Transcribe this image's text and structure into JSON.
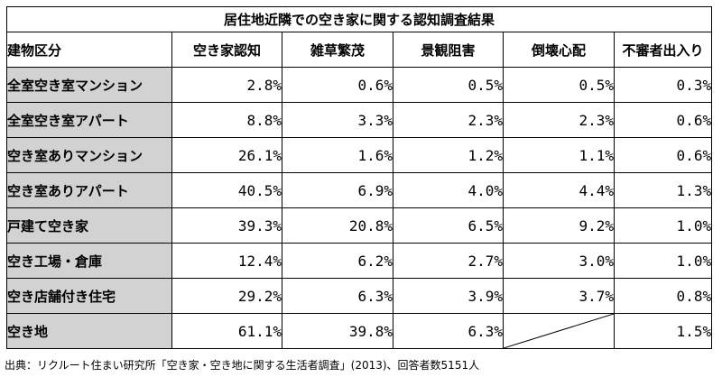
{
  "chart_data": {
    "type": "table",
    "title": "居住地近隣での空き家に関する認知調査結果",
    "category_header": "建物区分",
    "columns": [
      "空き家認知",
      "雑草繁茂",
      "景観阻害",
      "倒壊心配",
      "不審者出入り"
    ],
    "rows": [
      {
        "category": "全室空き室マンション",
        "cells": [
          "2.8%",
          "0.6%",
          "0.5%",
          "0.5%",
          "0.3%"
        ]
      },
      {
        "category": "全室空き室アパート",
        "cells": [
          "8.8%",
          "3.3%",
          "2.3%",
          "2.3%",
          "0.6%"
        ]
      },
      {
        "category": "空き室ありマンション",
        "cells": [
          "26.1%",
          "1.6%",
          "1.2%",
          "1.1%",
          "0.6%"
        ]
      },
      {
        "category": "空き室ありアパート",
        "cells": [
          "40.5%",
          "6.9%",
          "4.0%",
          "4.4%",
          "1.3%"
        ]
      },
      {
        "category": "戸建て空き家",
        "cells": [
          "39.3%",
          "20.8%",
          "6.5%",
          "9.2%",
          "1.0%"
        ]
      },
      {
        "category": "空き工場・倉庫",
        "cells": [
          "12.4%",
          "6.2%",
          "2.7%",
          "3.0%",
          "1.0%"
        ]
      },
      {
        "category": "空き店舗付き住宅",
        "cells": [
          "29.2%",
          "6.3%",
          "3.9%",
          "3.7%",
          "0.8%"
        ]
      },
      {
        "category": "空き地",
        "cells": [
          "61.1%",
          "39.8%",
          "6.3%",
          null,
          "1.5%"
        ]
      }
    ],
    "source": "出典：リクルート住まい研究所「空き家・空き地に関する生活者調査」(2013)、回答者数5151人"
  },
  "colors": {
    "category_fill": "#d2d2d2",
    "border": "#000000",
    "background": "#ffffff"
  }
}
